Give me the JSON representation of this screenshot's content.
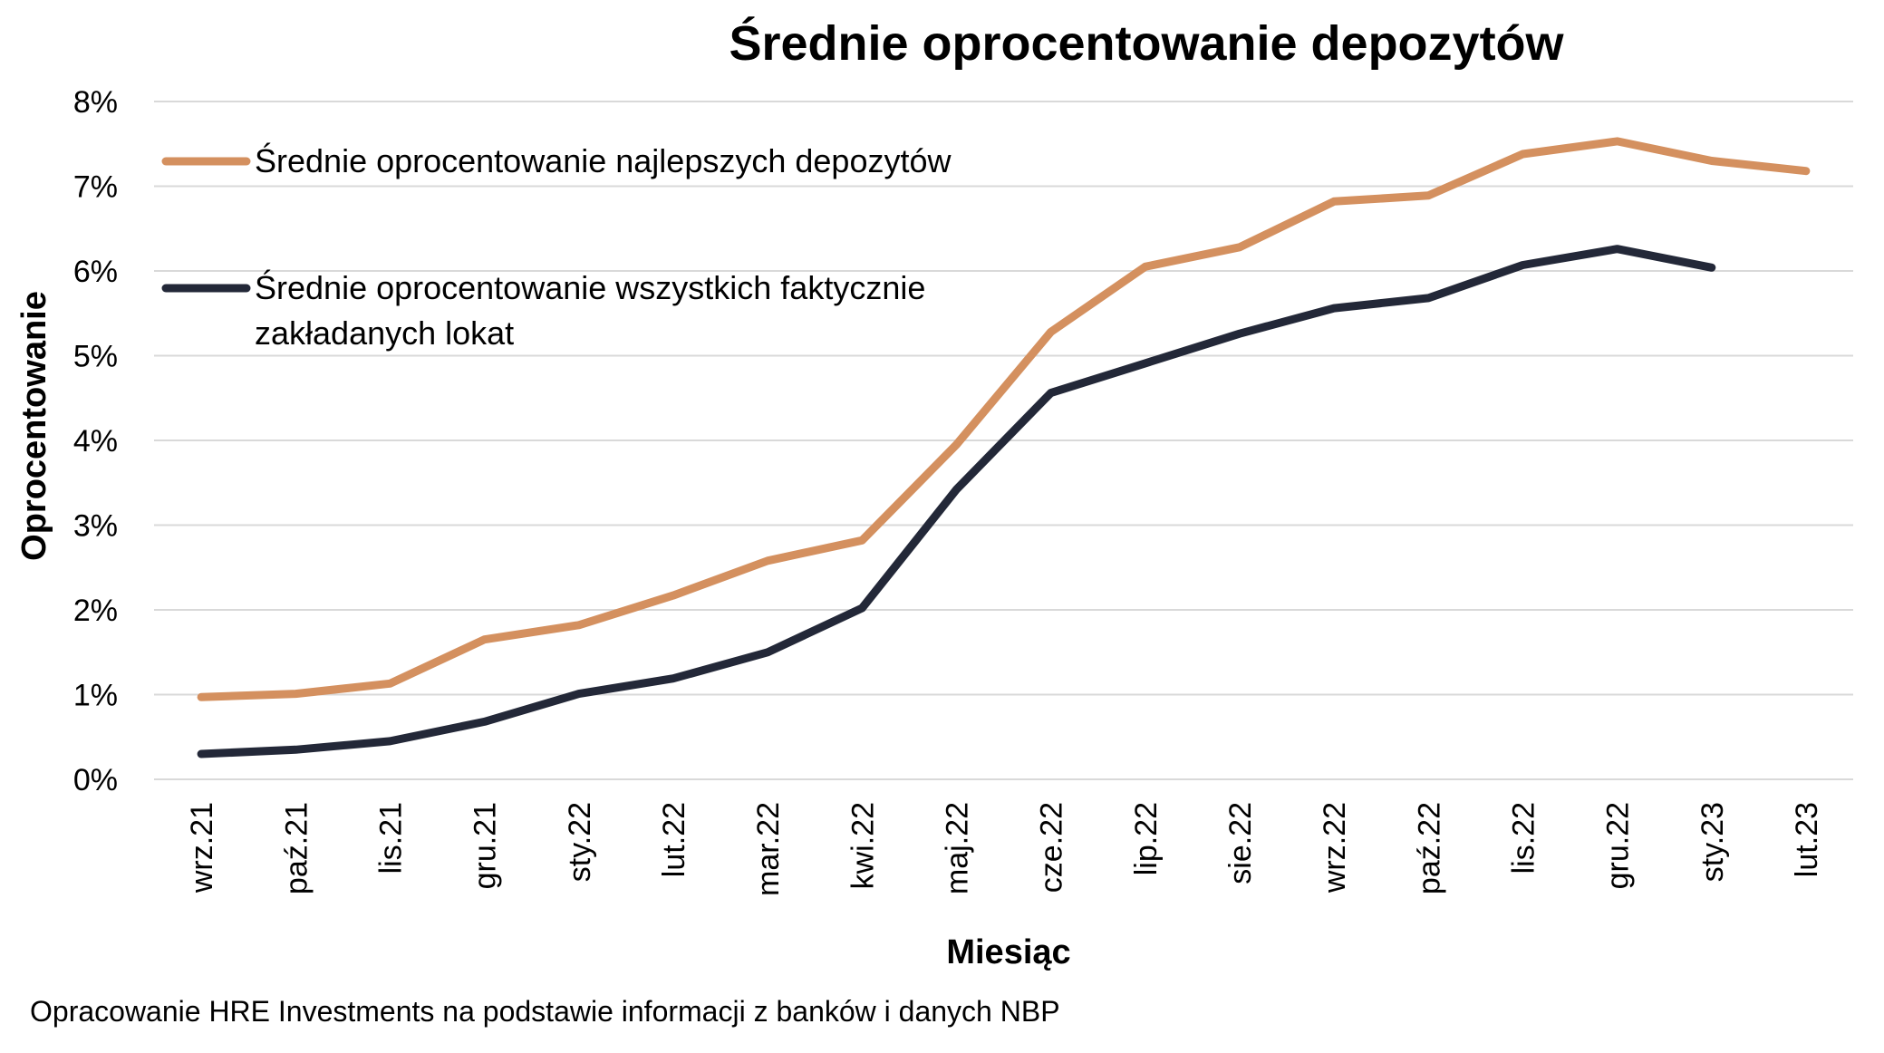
{
  "chart_data": {
    "type": "line",
    "title": "Średnie oprocentowanie depozytów",
    "xlabel": "Miesiąc",
    "ylabel": "Oprocentowanie",
    "ylim": [
      0,
      8
    ],
    "y_ticks": [
      "0%",
      "1%",
      "2%",
      "3%",
      "4%",
      "5%",
      "6%",
      "7%",
      "8%"
    ],
    "grid": true,
    "legend_position": "top-left",
    "categories": [
      "wrz.21",
      "paź.21",
      "lis.21",
      "gru.21",
      "sty.22",
      "lut.22",
      "mar.22",
      "kwi.22",
      "maj.22",
      "cze.22",
      "lip.22",
      "sie.22",
      "wrz.22",
      "paź.22",
      "lis.22",
      "gru.22",
      "sty.23",
      "lut.23"
    ],
    "series": [
      {
        "name": "Średnie oprocentowanie najlepszych depozytów",
        "color": "#D4905F",
        "values": [
          0.97,
          1.01,
          1.13,
          1.65,
          1.82,
          2.17,
          2.58,
          2.82,
          3.95,
          5.28,
          6.05,
          6.28,
          6.82,
          6.89,
          7.38,
          7.53,
          7.3,
          7.18
        ]
      },
      {
        "name": "Średnie oprocentowanie wszystkich faktycznie zakładanych lokat",
        "name_lines": [
          "Średnie oprocentowanie wszystkich faktycznie",
          "zakładanych lokat"
        ],
        "color": "#232838",
        "values": [
          0.3,
          0.35,
          0.45,
          0.68,
          1.01,
          1.19,
          1.5,
          2.02,
          3.42,
          4.56,
          4.91,
          5.26,
          5.56,
          5.68,
          6.07,
          6.26,
          6.04,
          null
        ]
      }
    ]
  },
  "footnote": "Opracowanie HRE Investments na podstawie informacji z banków i danych NBP"
}
